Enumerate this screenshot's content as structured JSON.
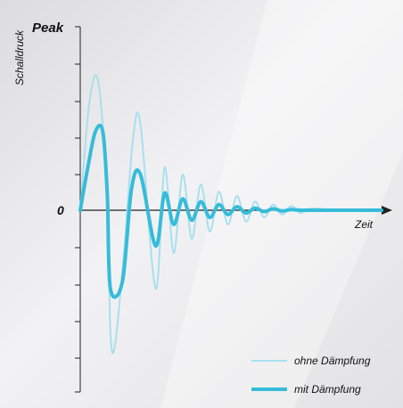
{
  "chart_data": {
    "type": "line",
    "ylabel": "Schalldruck",
    "xlabel": "Zeit",
    "y_top_label": "Peak",
    "y_zero_label": "0",
    "grid": false,
    "legend_position": "bottom-right",
    "series": [
      {
        "name": "ohne Dämpfung",
        "color": "#a9dfee",
        "x": [
          0,
          0.03,
          0.06,
          0.09,
          0.1,
          0.115,
          0.145,
          0.175,
          0.2,
          0.25,
          0.28,
          0.31,
          0.34,
          0.37,
          0.4,
          0.43,
          0.46,
          0.49,
          0.52,
          0.55,
          0.58,
          0.61,
          0.64,
          0.67,
          0.7,
          0.73,
          0.76,
          0.8,
          0.85,
          1.0
        ],
        "values": [
          0,
          0.75,
          0.9,
          0.05,
          -0.85,
          -0.95,
          -0.3,
          0.5,
          0.6,
          -0.55,
          0.3,
          -0.3,
          0.25,
          -0.2,
          0.18,
          -0.15,
          0.13,
          -0.1,
          0.1,
          -0.08,
          0.06,
          -0.05,
          0.04,
          -0.03,
          0.03,
          -0.02,
          0.01,
          0.01,
          0.0,
          0.0
        ]
      },
      {
        "name": "mit Dämpfung",
        "color": "#36bcd9",
        "x": [
          0,
          0.025,
          0.05,
          0.075,
          0.09,
          0.1,
          0.14,
          0.17,
          0.2,
          0.25,
          0.28,
          0.31,
          0.34,
          0.37,
          0.4,
          0.43,
          0.46,
          0.49,
          0.52,
          0.55,
          0.58,
          0.61,
          0.64,
          0.67,
          0.7,
          0.73,
          0.76,
          0.8,
          0.85,
          1.0
        ],
        "values": [
          0,
          0.3,
          0.55,
          0.55,
          0.1,
          -0.55,
          -0.5,
          0.15,
          0.25,
          -0.25,
          0.12,
          -0.1,
          0.08,
          -0.07,
          0.06,
          -0.05,
          0.04,
          -0.03,
          0.025,
          -0.02,
          0.015,
          -0.01,
          0.01,
          -0.005,
          0.005,
          0.0,
          0.0,
          0.0,
          0.0,
          0.0
        ]
      }
    ],
    "ylim": [
      -1.0,
      1.0
    ],
    "xlim": [
      0,
      1.0
    ]
  }
}
